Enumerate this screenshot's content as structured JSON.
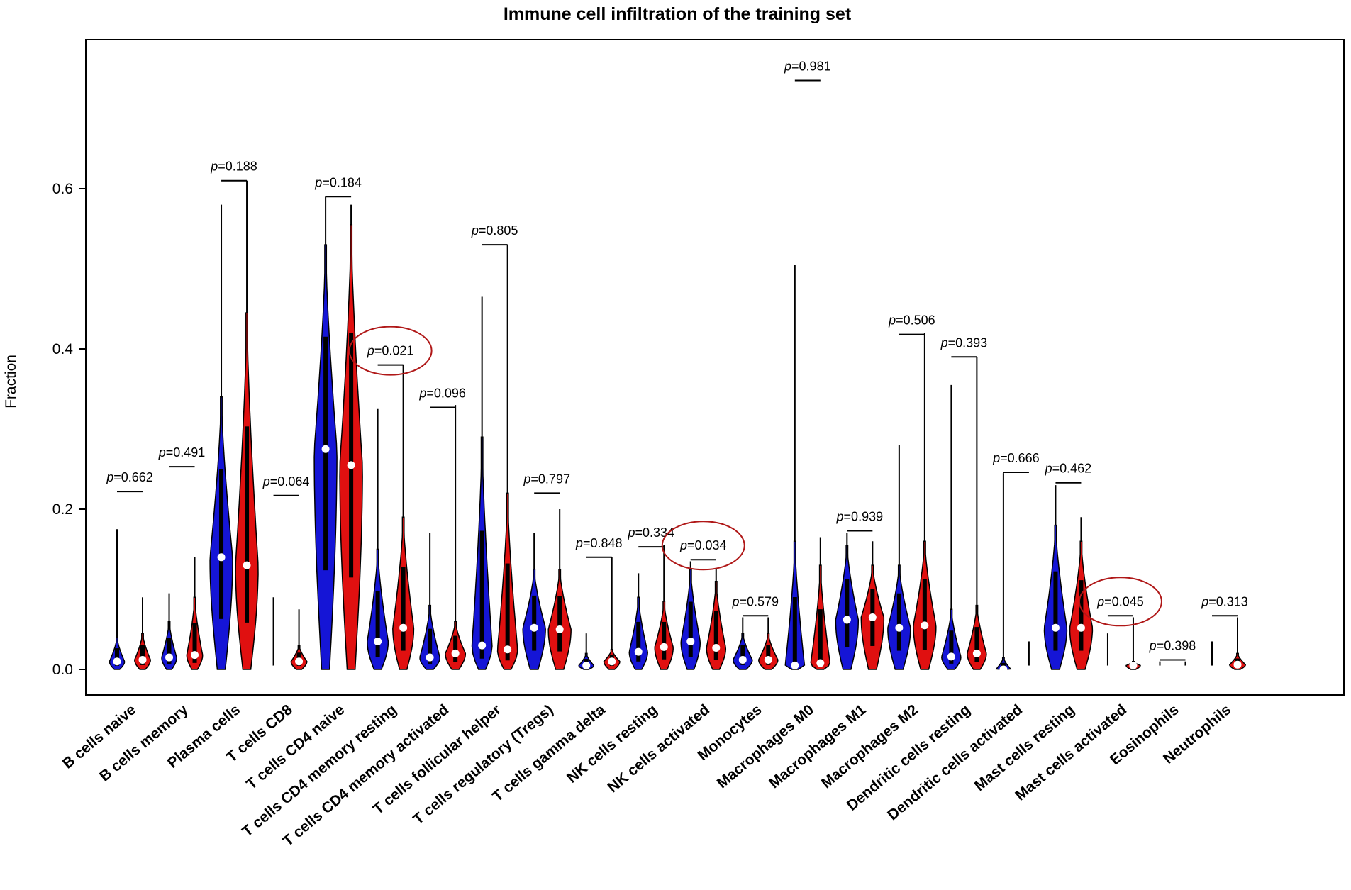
{
  "chart_data": {
    "type": "violin",
    "title": "Immune cell infiltration of the training set",
    "xlabel": "",
    "ylabel": "Fraction",
    "ylim": [
      -0.03,
      0.79
    ],
    "yticks": [
      0.0,
      0.2,
      0.4,
      0.6
    ],
    "ytick_labels": [
      "0.0",
      "0.2",
      "0.4",
      "0.6"
    ],
    "grid": false,
    "legend": "none",
    "colors": {
      "group1": "#1515d6",
      "group2": "#e01010",
      "circle": "#b01818"
    },
    "p_prefix": "p",
    "categories": [
      "B cells naive",
      "B cells memory",
      "Plasma cells",
      "T cells CD8",
      "T cells CD4 naive",
      "T cells CD4 memory resting",
      "T cells CD4 memory activated",
      "T cells follicular helper",
      "T cells regulatory (Tregs)",
      "T cells gamma delta",
      "NK cells resting",
      "NK cells activated",
      "Monocytes",
      "Macrophages M0",
      "Macrophages M1",
      "Macrophages M2",
      "Dendritic cells resting",
      "Dendritic cells activated",
      "Mast cells resting",
      "Mast cells activated",
      "Eosinophils",
      "Neutrophils"
    ],
    "p_values": [
      "=0.662",
      "=0.491",
      "=0.188",
      "=0.064",
      "=0.184",
      "=0.021",
      "=0.096",
      "=0.805",
      "=0.797",
      "=0.848",
      "=0.334",
      "=0.034",
      "=0.579",
      "=0.981",
      "=0.939",
      "=0.506",
      "=0.393",
      "=0.666",
      "=0.462",
      "=0.045",
      "=0.398",
      "=0.313"
    ],
    "significant": [
      5,
      11,
      19
    ],
    "series": [
      {
        "median": [
          0.01,
          0.015,
          0.14,
          0.0,
          0.275,
          0.035,
          0.015,
          0.03,
          0.052,
          0.005,
          0.022,
          0.035,
          0.012,
          0.005,
          0.062,
          0.052,
          0.016,
          0.0,
          0.052,
          0.0,
          0.0,
          0.0
        ],
        "max": [
          0.175,
          0.095,
          0.58,
          0.09,
          0.59,
          0.325,
          0.17,
          0.465,
          0.17,
          0.045,
          0.12,
          0.135,
          0.065,
          0.505,
          0.17,
          0.28,
          0.355,
          0.245,
          0.23,
          0.045,
          0.01,
          0.035
        ],
        "body_top": [
          0.04,
          0.06,
          0.34,
          0.0,
          0.53,
          0.15,
          0.08,
          0.29,
          0.125,
          0.02,
          0.09,
          0.125,
          0.045,
          0.16,
          0.155,
          0.13,
          0.075,
          0.015,
          0.18,
          0.0,
          0.0,
          0.0
        ],
        "width": [
          0.55,
          0.55,
          1.0,
          0.4,
          1.0,
          0.9,
          0.85,
          0.85,
          1.0,
          0.55,
          0.75,
          0.8,
          0.8,
          0.8,
          1.0,
          1.0,
          0.8,
          0.55,
          1.0,
          0.4,
          0.3,
          0.4
        ]
      },
      {
        "median": [
          0.012,
          0.018,
          0.13,
          0.01,
          0.255,
          0.052,
          0.02,
          0.025,
          0.05,
          0.01,
          0.028,
          0.027,
          0.012,
          0.008,
          0.065,
          0.055,
          0.02,
          0.0,
          0.052,
          0.005,
          0.0,
          0.006
        ],
        "max": [
          0.09,
          0.14,
          0.61,
          0.075,
          0.58,
          0.38,
          0.33,
          0.53,
          0.2,
          0.14,
          0.155,
          0.125,
          0.065,
          0.165,
          0.16,
          0.42,
          0.39,
          0.035,
          0.19,
          0.065,
          0.01,
          0.065
        ],
        "body_top": [
          0.045,
          0.09,
          0.445,
          0.03,
          0.555,
          0.19,
          0.06,
          0.22,
          0.125,
          0.025,
          0.085,
          0.11,
          0.045,
          0.13,
          0.13,
          0.16,
          0.08,
          0.0,
          0.16,
          0.01,
          0.0,
          0.02
        ],
        "width": [
          0.6,
          0.6,
          1.0,
          0.6,
          1.0,
          0.9,
          0.85,
          0.85,
          1.0,
          0.6,
          0.75,
          0.8,
          0.8,
          0.8,
          1.0,
          1.0,
          0.8,
          0.4,
          1.0,
          0.5,
          0.3,
          0.6
        ]
      }
    ],
    "bracket_top": [
      0.222,
      0.253,
      0.61,
      0.217,
      0.59,
      0.38,
      0.327,
      0.53,
      0.22,
      0.14,
      0.153,
      0.137,
      0.067,
      0.735,
      0.173,
      0.418,
      0.39,
      0.246,
      0.233,
      0.067,
      0.012,
      0.067
    ]
  }
}
